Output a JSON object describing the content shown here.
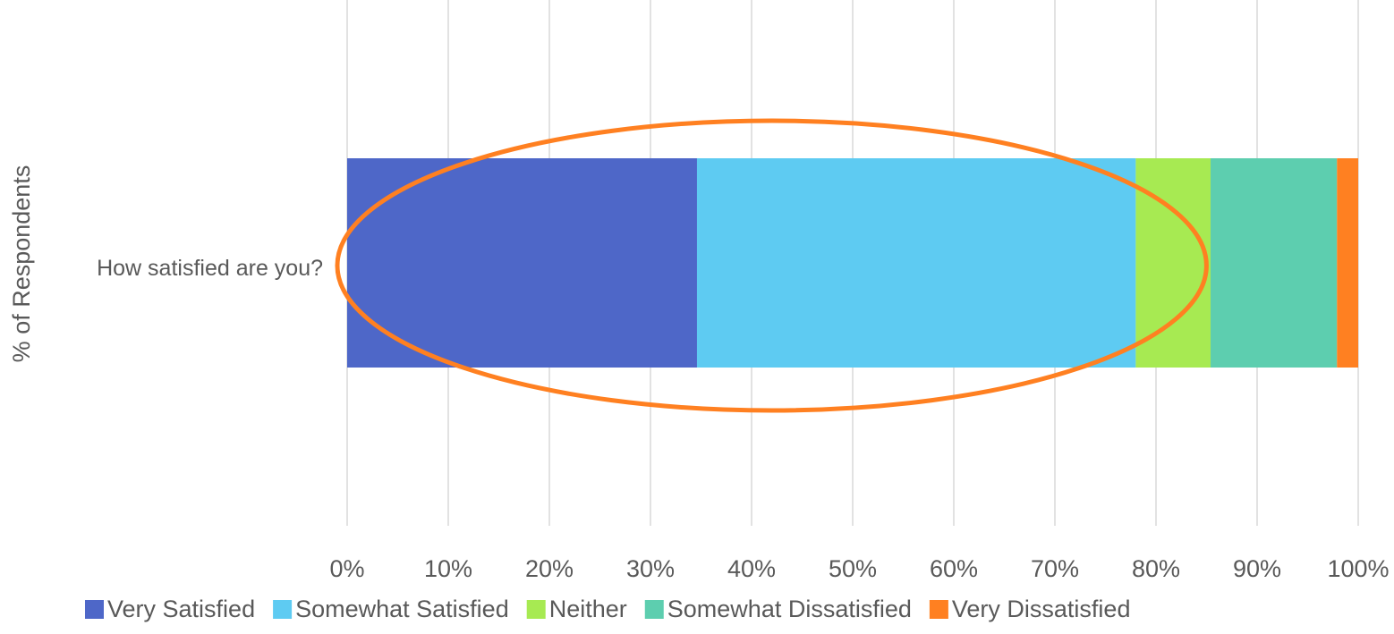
{
  "chart_data": {
    "type": "bar",
    "orientation": "horizontal",
    "stacked": "percent",
    "categories": [
      "How satisfied are you?"
    ],
    "series": [
      {
        "name": "Very Satisfied",
        "values": [
          34.6
        ],
        "color": "#4e67c8"
      },
      {
        "name": "Somewhat Satisfied",
        "values": [
          43.4
        ],
        "color": "#5ecbf2"
      },
      {
        "name": "Neither",
        "values": [
          7.4
        ],
        "color": "#a7ea52"
      },
      {
        "name": "Somewhat Dissatisfied",
        "values": [
          12.5
        ],
        "color": "#5dceaf"
      },
      {
        "name": "Very Dissatisfied",
        "values": [
          2.1
        ],
        "color": "#ff8021"
      }
    ],
    "xlim": [
      0,
      100
    ],
    "x_ticks": [
      "0%",
      "10%",
      "20%",
      "30%",
      "40%",
      "50%",
      "60%",
      "70%",
      "80%",
      "90%",
      "100%"
    ],
    "xlabel": "",
    "ylabel": "% of Respondents",
    "grid": "vertical",
    "legend": "bottom",
    "annotation": {
      "shape": "ellipse",
      "color": "#ff8021",
      "encloses_series": [
        "Very Satisfied",
        "Somewhat Satisfied"
      ]
    }
  },
  "colors": {
    "grid": "#d9d9d9",
    "text": "#595959"
  }
}
